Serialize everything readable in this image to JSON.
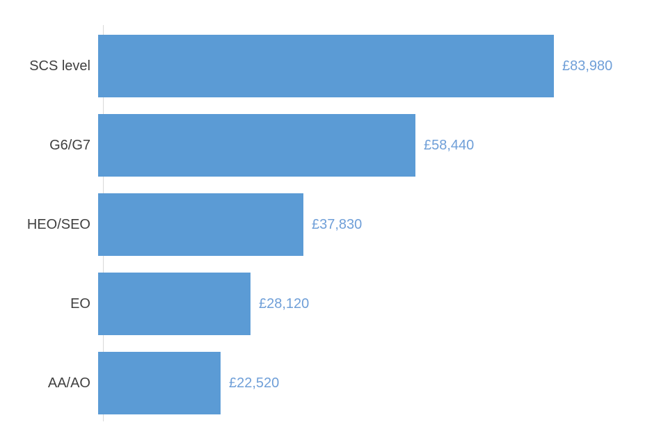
{
  "chart_data": {
    "type": "bar",
    "orientation": "horizontal",
    "title": "",
    "xlabel": "",
    "ylabel": "",
    "categories": [
      "SCS level",
      "G6/G7",
      "HEO/SEO",
      "EO",
      "AA/AO"
    ],
    "values": [
      83980,
      58440,
      37830,
      28120,
      22520
    ],
    "value_labels": [
      "£83,980",
      "£58,440",
      "£37,830",
      "£28,120",
      "£22,520"
    ],
    "xlim": [
      0,
      90000
    ],
    "grid": false,
    "legend": false,
    "colors": {
      "bar": "#5b9bd5",
      "value_label": "#6f9fd8",
      "category_label": "#404040",
      "axis_line": "#d9d9d9",
      "background": "#ffffff"
    }
  }
}
